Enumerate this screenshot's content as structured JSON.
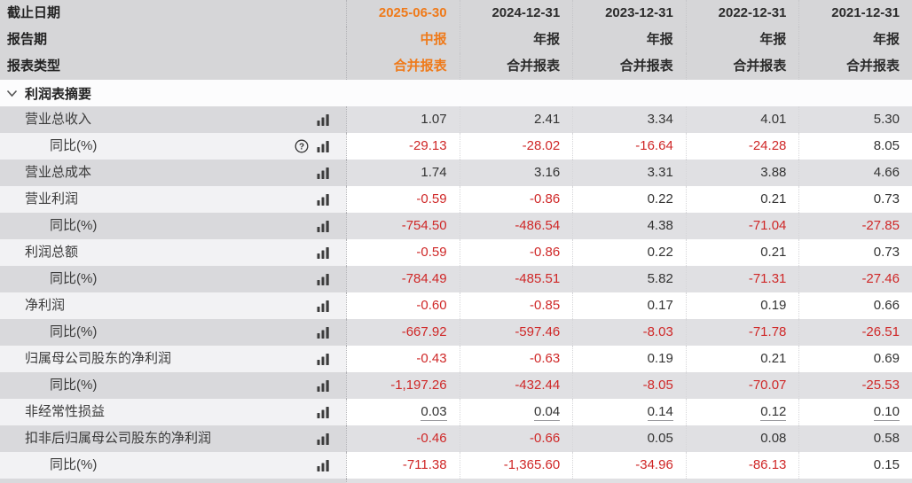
{
  "header": {
    "row_labels": [
      "截止日期",
      "报告期",
      "报表类型"
    ],
    "columns": [
      {
        "date": "2025-06-30",
        "period": "中报",
        "report_type": "合并报表",
        "highlighted": true
      },
      {
        "date": "2024-12-31",
        "period": "年报",
        "report_type": "合并报表",
        "highlighted": false
      },
      {
        "date": "2023-12-31",
        "period": "年报",
        "report_type": "合并报表",
        "highlighted": false
      },
      {
        "date": "2022-12-31",
        "period": "年报",
        "report_type": "合并报表",
        "highlighted": false
      },
      {
        "date": "2021-12-31",
        "period": "年报",
        "report_type": "合并报表",
        "highlighted": false
      }
    ]
  },
  "section": {
    "title": "利润表摘要",
    "collapse_icon": "chevron-down-icon",
    "expanded": true
  },
  "table": {
    "rows": [
      {
        "label": "营业总收入",
        "indent": false,
        "help": false,
        "underline": false,
        "values": [
          "1.07",
          "2.41",
          "3.34",
          "4.01",
          "5.30"
        ]
      },
      {
        "label": "同比(%)",
        "indent": true,
        "help": true,
        "underline": false,
        "values": [
          "-29.13",
          "-28.02",
          "-16.64",
          "-24.28",
          "8.05"
        ]
      },
      {
        "label": "营业总成本",
        "indent": false,
        "help": false,
        "underline": false,
        "values": [
          "1.74",
          "3.16",
          "3.31",
          "3.88",
          "4.66"
        ]
      },
      {
        "label": "营业利润",
        "indent": false,
        "help": false,
        "underline": false,
        "values": [
          "-0.59",
          "-0.86",
          "0.22",
          "0.21",
          "0.73"
        ]
      },
      {
        "label": "同比(%)",
        "indent": true,
        "help": false,
        "underline": false,
        "values": [
          "-754.50",
          "-486.54",
          "4.38",
          "-71.04",
          "-27.85"
        ]
      },
      {
        "label": "利润总额",
        "indent": false,
        "help": false,
        "underline": false,
        "values": [
          "-0.59",
          "-0.86",
          "0.22",
          "0.21",
          "0.73"
        ]
      },
      {
        "label": "同比(%)",
        "indent": true,
        "help": false,
        "underline": false,
        "values": [
          "-784.49",
          "-485.51",
          "5.82",
          "-71.31",
          "-27.46"
        ]
      },
      {
        "label": "净利润",
        "indent": false,
        "help": false,
        "underline": false,
        "values": [
          "-0.60",
          "-0.85",
          "0.17",
          "0.19",
          "0.66"
        ]
      },
      {
        "label": "同比(%)",
        "indent": true,
        "help": false,
        "underline": false,
        "values": [
          "-667.92",
          "-597.46",
          "-8.03",
          "-71.78",
          "-26.51"
        ]
      },
      {
        "label": "归属母公司股东的净利润",
        "indent": false,
        "help": false,
        "underline": false,
        "values": [
          "-0.43",
          "-0.63",
          "0.19",
          "0.21",
          "0.69"
        ]
      },
      {
        "label": "同比(%)",
        "indent": true,
        "help": false,
        "underline": false,
        "values": [
          "-1,197.26",
          "-432.44",
          "-8.05",
          "-70.07",
          "-25.53"
        ]
      },
      {
        "label": "非经常性损益",
        "indent": false,
        "help": false,
        "underline": true,
        "values": [
          "0.03",
          "0.04",
          "0.14",
          "0.12",
          "0.10"
        ]
      },
      {
        "label": "扣非后归属母公司股东的净利润",
        "indent": false,
        "help": false,
        "underline": false,
        "values": [
          "-0.46",
          "-0.66",
          "0.05",
          "0.08",
          "0.58"
        ]
      },
      {
        "label": "同比(%)",
        "indent": true,
        "help": false,
        "underline": false,
        "values": [
          "-711.38",
          "-1,365.60",
          "-34.96",
          "-86.13",
          "0.15"
        ]
      }
    ]
  },
  "icons": {
    "row_chart_icon": "bar-chart-icon",
    "help_icon": "question-mark-icon",
    "section_icon": "chevron-down-icon"
  },
  "colors": {
    "accent_orange": "#ef7a1a",
    "negative_red": "#cf2727",
    "header_bg": "#d6d6d8"
  }
}
